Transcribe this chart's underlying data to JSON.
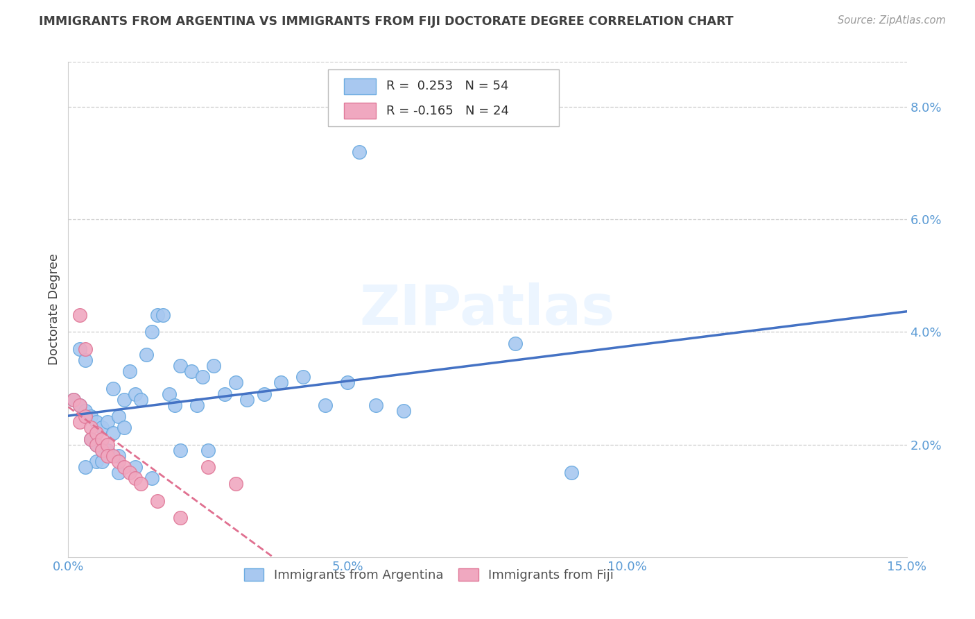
{
  "title": "IMMIGRANTS FROM ARGENTINA VS IMMIGRANTS FROM FIJI DOCTORATE DEGREE CORRELATION CHART",
  "source": "Source: ZipAtlas.com",
  "ylabel": "Doctorate Degree",
  "xlim": [
    0.0,
    0.15
  ],
  "ylim": [
    0.0,
    0.088
  ],
  "xticks": [
    0.0,
    0.05,
    0.1,
    0.15
  ],
  "xtick_labels": [
    "0.0%",
    "5.0%",
    "10.0%",
    "15.0%"
  ],
  "yticks": [
    0.0,
    0.02,
    0.04,
    0.06,
    0.08
  ],
  "ytick_labels": [
    "",
    "2.0%",
    "4.0%",
    "6.0%",
    "8.0%"
  ],
  "argentina_R": 0.253,
  "argentina_N": 54,
  "fiji_R": -0.165,
  "fiji_N": 24,
  "argentina_color": "#a8c8f0",
  "argentina_edge": "#6aaae0",
  "fiji_color": "#f0a8c0",
  "fiji_edge": "#e07898",
  "argentina_line_color": "#4472c4",
  "fiji_line_color": "#e07090",
  "background_color": "#ffffff",
  "grid_color": "#cccccc",
  "title_color": "#404040",
  "axis_color": "#5b9bd5",
  "argentina_scatter_x": [
    0.001,
    0.002,
    0.002,
    0.003,
    0.003,
    0.004,
    0.004,
    0.005,
    0.005,
    0.005,
    0.006,
    0.006,
    0.007,
    0.007,
    0.008,
    0.008,
    0.009,
    0.009,
    0.01,
    0.01,
    0.011,
    0.012,
    0.013,
    0.014,
    0.015,
    0.016,
    0.017,
    0.018,
    0.019,
    0.02,
    0.022,
    0.023,
    0.024,
    0.026,
    0.028,
    0.03,
    0.032,
    0.035,
    0.038,
    0.042,
    0.046,
    0.05,
    0.055,
    0.06,
    0.003,
    0.006,
    0.009,
    0.012,
    0.015,
    0.02,
    0.025,
    0.08,
    0.09,
    0.052
  ],
  "argentina_scatter_y": [
    0.028,
    0.027,
    0.037,
    0.026,
    0.035,
    0.025,
    0.021,
    0.024,
    0.02,
    0.017,
    0.023,
    0.019,
    0.024,
    0.019,
    0.03,
    0.022,
    0.025,
    0.018,
    0.028,
    0.023,
    0.033,
    0.029,
    0.028,
    0.036,
    0.04,
    0.043,
    0.043,
    0.029,
    0.027,
    0.034,
    0.033,
    0.027,
    0.032,
    0.034,
    0.029,
    0.031,
    0.028,
    0.029,
    0.031,
    0.032,
    0.027,
    0.031,
    0.027,
    0.026,
    0.016,
    0.017,
    0.015,
    0.016,
    0.014,
    0.019,
    0.019,
    0.038,
    0.015,
    0.072
  ],
  "fiji_scatter_x": [
    0.001,
    0.002,
    0.002,
    0.003,
    0.004,
    0.004,
    0.005,
    0.005,
    0.006,
    0.006,
    0.007,
    0.007,
    0.008,
    0.009,
    0.01,
    0.011,
    0.012,
    0.013,
    0.002,
    0.003,
    0.025,
    0.03,
    0.016,
    0.02
  ],
  "fiji_scatter_y": [
    0.028,
    0.027,
    0.024,
    0.025,
    0.023,
    0.021,
    0.022,
    0.02,
    0.021,
    0.019,
    0.02,
    0.018,
    0.018,
    0.017,
    0.016,
    0.015,
    0.014,
    0.013,
    0.043,
    0.037,
    0.016,
    0.013,
    0.01,
    0.007
  ],
  "fiji_line_x_end": 0.065
}
